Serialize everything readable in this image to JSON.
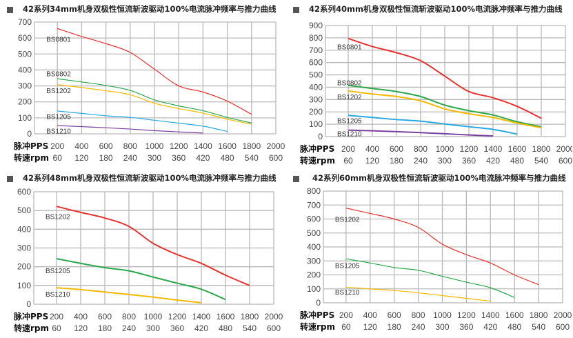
{
  "chart_data": [
    {
      "type": "line",
      "title": "42系列34mm机身双极性恒流斩波驱动100%电流脉冲频率与推力曲线",
      "x_row_labels": [
        "脉冲PPS",
        "转速rpm"
      ],
      "x_ticks": [
        200,
        400,
        600,
        800,
        1000,
        1200,
        1400,
        1600,
        1800,
        2000
      ],
      "x_ticks_rpm": [
        60,
        120,
        180,
        240,
        300,
        360,
        420,
        480,
        540,
        600
      ],
      "xlim": [
        0,
        2000
      ],
      "ylim": [
        0,
        700
      ],
      "y_ticks": [
        0,
        100,
        200,
        300,
        400,
        500,
        600,
        700
      ],
      "grid": true,
      "series": [
        {
          "name": "BS0801",
          "color": "#e8312f",
          "x": [
            200,
            400,
            600,
            800,
            1000,
            1200,
            1400,
            1600,
            1800
          ],
          "values": [
            660,
            610,
            565,
            510,
            405,
            300,
            262,
            205,
            122
          ]
        },
        {
          "name": "BS0802",
          "color": "#2aa84a",
          "x": [
            200,
            400,
            600,
            800,
            1000,
            1200,
            1400,
            1600,
            1800
          ],
          "values": [
            345,
            325,
            303,
            272,
            213,
            175,
            145,
            103,
            68
          ]
        },
        {
          "name": "BS1202",
          "color": "#f5b800",
          "x": [
            200,
            400,
            600,
            800,
            1000,
            1200,
            1400,
            1600,
            1800
          ],
          "values": [
            308,
            290,
            270,
            245,
            192,
            158,
            130,
            92,
            60
          ]
        },
        {
          "name": "BS1205",
          "color": "#29a8e0",
          "x": [
            200,
            400,
            600,
            800,
            1000,
            1200,
            1400,
            1600
          ],
          "values": [
            143,
            128,
            113,
            103,
            85,
            67,
            48,
            15
          ]
        },
        {
          "name": "BS1210",
          "color": "#7b3fa0",
          "x": [
            200,
            400,
            600,
            800,
            1000,
            1200,
            1400
          ],
          "values": [
            52,
            45,
            38,
            30,
            20,
            12,
            5
          ]
        }
      ]
    },
    {
      "type": "line",
      "title": "42系列40mm机身双极性恒流斩波驱动100%电流脉冲频率与推力曲线",
      "x_row_labels": [
        "脉冲PPS",
        "转速rpm"
      ],
      "x_ticks": [
        200,
        400,
        600,
        800,
        1000,
        1200,
        1400,
        1600,
        1800,
        2000
      ],
      "x_ticks_rpm": [
        60,
        120,
        180,
        240,
        300,
        360,
        420,
        480,
        540,
        600
      ],
      "xlim": [
        0,
        2000
      ],
      "ylim": [
        0,
        900
      ],
      "y_ticks": [
        0,
        100,
        200,
        300,
        400,
        500,
        600,
        700,
        800,
        900
      ],
      "grid": true,
      "series": [
        {
          "name": "BS0801",
          "color": "#e8312f",
          "x": [
            200,
            400,
            600,
            800,
            1000,
            1200,
            1400,
            1600,
            1800
          ],
          "values": [
            795,
            730,
            680,
            615,
            490,
            365,
            315,
            245,
            148
          ]
        },
        {
          "name": "BS0802",
          "color": "#2aa84a",
          "x": [
            200,
            400,
            600,
            800,
            1000,
            1200,
            1400,
            1600,
            1800
          ],
          "values": [
            415,
            390,
            365,
            325,
            255,
            210,
            175,
            120,
            80
          ]
        },
        {
          "name": "BS1202",
          "color": "#f5b800",
          "x": [
            200,
            400,
            600,
            800,
            1000,
            1200,
            1400,
            1600,
            1800
          ],
          "values": [
            370,
            345,
            325,
            290,
            225,
            185,
            155,
            110,
            72
          ]
        },
        {
          "name": "BS1205",
          "color": "#29a8e0",
          "x": [
            200,
            400,
            600,
            800,
            1000,
            1200,
            1400,
            1600
          ],
          "values": [
            172,
            155,
            138,
            125,
            102,
            80,
            58,
            20
          ]
        },
        {
          "name": "BS1210",
          "color": "#7b3fa0",
          "x": [
            200,
            400,
            600,
            800,
            1000,
            1200,
            1400
          ],
          "values": [
            52,
            47,
            40,
            32,
            23,
            13,
            5
          ]
        }
      ]
    },
    {
      "type": "line",
      "title": "42系列48mm机身双极性恒流斩波驱动100%电流脉冲频率与推力曲线",
      "x_row_labels": [
        "脉冲PPS",
        "转速rpm"
      ],
      "x_ticks": [
        200,
        400,
        600,
        800,
        1000,
        1200,
        1400,
        1600,
        1800,
        2000
      ],
      "x_ticks_rpm": [
        60,
        120,
        180,
        240,
        300,
        360,
        420,
        480,
        540,
        600
      ],
      "xlim": [
        0,
        2000
      ],
      "ylim": [
        0,
        600
      ],
      "y_ticks": [
        0,
        100,
        200,
        300,
        400,
        500,
        600
      ],
      "grid": true,
      "series": [
        {
          "name": "BS1202",
          "color": "#e8312f",
          "x": [
            200,
            400,
            600,
            800,
            1000,
            1200,
            1400,
            1600,
            1800
          ],
          "values": [
            522,
            490,
            460,
            415,
            325,
            265,
            218,
            155,
            100
          ]
        },
        {
          "name": "BS1205",
          "color": "#2aa84a",
          "x": [
            200,
            400,
            600,
            800,
            1000,
            1200,
            1400,
            1600
          ],
          "values": [
            243,
            218,
            195,
            178,
            145,
            112,
            80,
            25
          ]
        },
        {
          "name": "BS1210",
          "color": "#f5b800",
          "x": [
            200,
            400,
            600,
            800,
            1000,
            1200,
            1400
          ],
          "values": [
            88,
            78,
            65,
            52,
            38,
            22,
            8
          ]
        }
      ]
    },
    {
      "type": "line",
      "title": "42系列60mm机身双极性恒流斩波驱动100%电流脉冲频率与推力曲线",
      "x_row_labels": [
        "脉冲PPS",
        "转速rpm"
      ],
      "x_ticks": [
        200,
        400,
        600,
        800,
        1000,
        1200,
        1400,
        1600,
        1800,
        2000
      ],
      "x_ticks_rpm": [
        60,
        120,
        180,
        240,
        300,
        360,
        420,
        480,
        540,
        600
      ],
      "xlim": [
        0,
        2000
      ],
      "ylim": [
        0,
        800
      ],
      "y_ticks": [
        0,
        100,
        200,
        300,
        400,
        500,
        600,
        700,
        800
      ],
      "grid": true,
      "series": [
        {
          "name": "BS1202",
          "color": "#e8312f",
          "x": [
            200,
            400,
            600,
            800,
            1000,
            1200,
            1400,
            1600,
            1800
          ],
          "values": [
            678,
            640,
            600,
            540,
            420,
            345,
            285,
            200,
            130
          ]
        },
        {
          "name": "BS1205",
          "color": "#2aa84a",
          "x": [
            200,
            400,
            600,
            800,
            1000,
            1200,
            1400,
            1600
          ],
          "values": [
            315,
            285,
            253,
            233,
            190,
            148,
            108,
            38
          ]
        },
        {
          "name": "BS1210",
          "color": "#f5b800",
          "x": [
            200,
            400,
            600,
            800,
            1000,
            1200,
            1400
          ],
          "values": [
            112,
            100,
            88,
            72,
            52,
            32,
            12
          ]
        }
      ]
    }
  ]
}
